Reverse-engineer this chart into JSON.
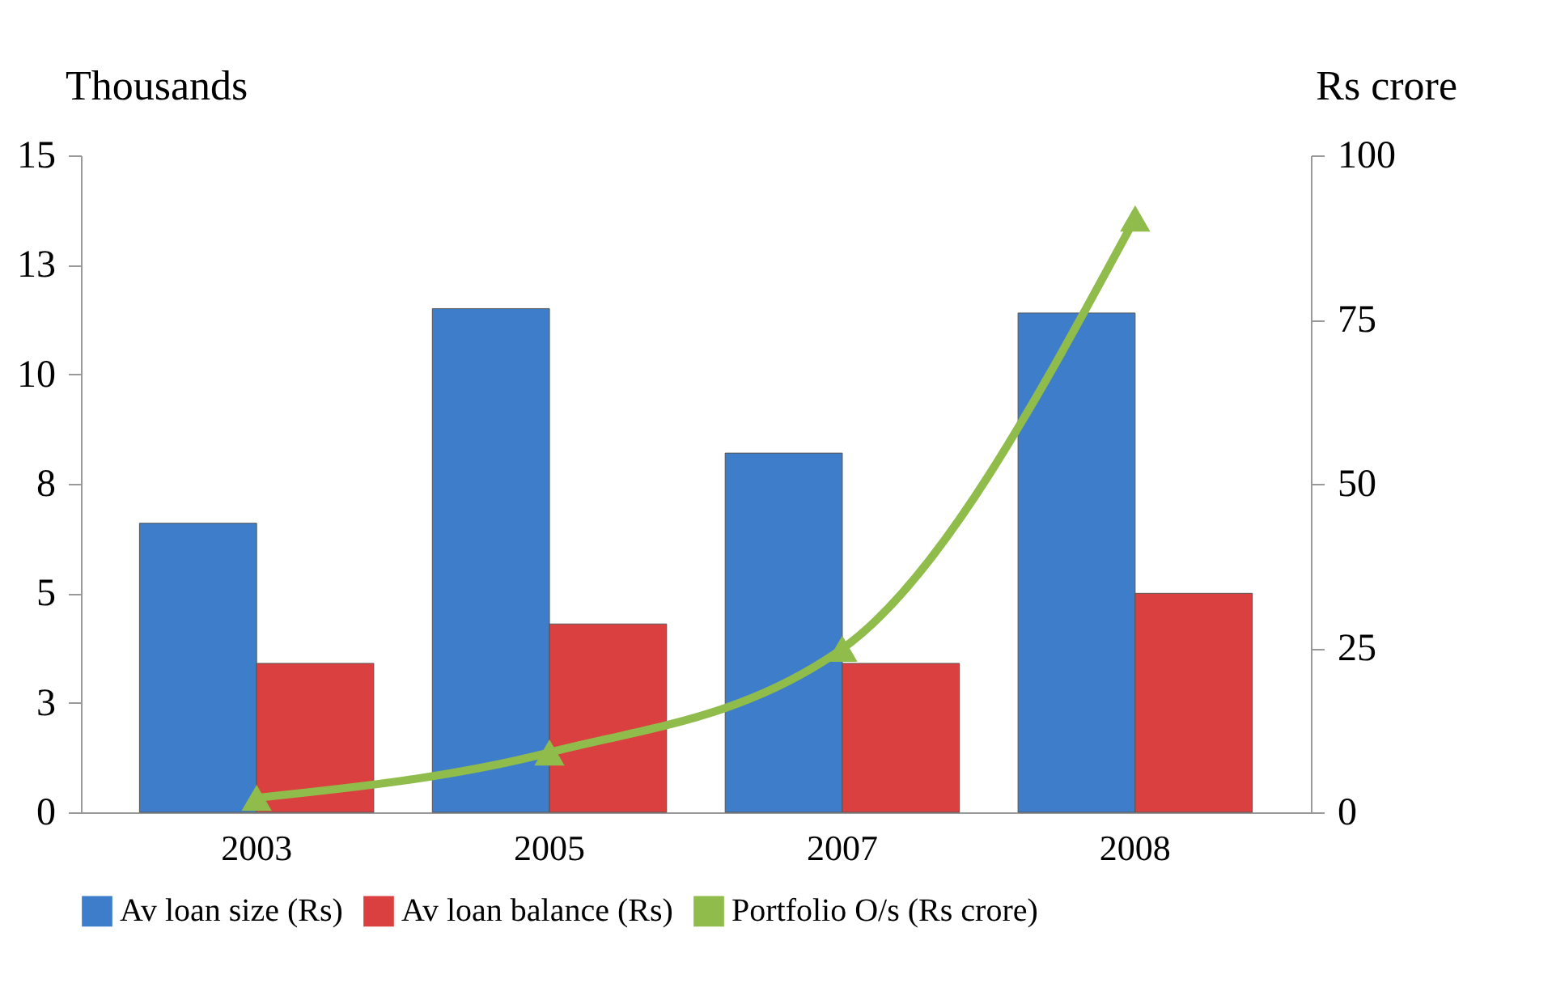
{
  "chart_data": {
    "type": "bar",
    "ylabel": "Thousands",
    "y2label": "Rs crore",
    "categories": [
      "2003",
      "2005",
      "2007",
      "2008"
    ],
    "series": [
      {
        "name": "Av loan size (Rs)",
        "color": "#3d7dca",
        "values": [
          6.6,
          11.5,
          8.2,
          11.4
        ]
      },
      {
        "name": "Av loan balance (Rs)",
        "color": "#d9403f",
        "values": [
          3.4,
          4.3,
          3.4,
          5.0
        ]
      },
      {
        "name": "Portfolio O/s (Rs crore)",
        "color": "#8fbc4a",
        "type": "line",
        "axis": "y2",
        "marker": "triangle",
        "line_style": "solid",
        "values": [
          2.2,
          9.1,
          24.9,
          90.4
        ]
      }
    ],
    "ylim": [
      0,
      15
    ],
    "yticks": [
      0,
      {
        "value": 2.5,
        "label": "3"
      },
      5,
      {
        "value": 7.5,
        "label": "8"
      },
      10,
      {
        "value": 12.5,
        "label": "13"
      },
      15
    ],
    "y2lim": [
      0,
      100
    ],
    "y2ticks": [
      0,
      25,
      50,
      75,
      100
    ],
    "grid": false,
    "legend": "bottom"
  }
}
